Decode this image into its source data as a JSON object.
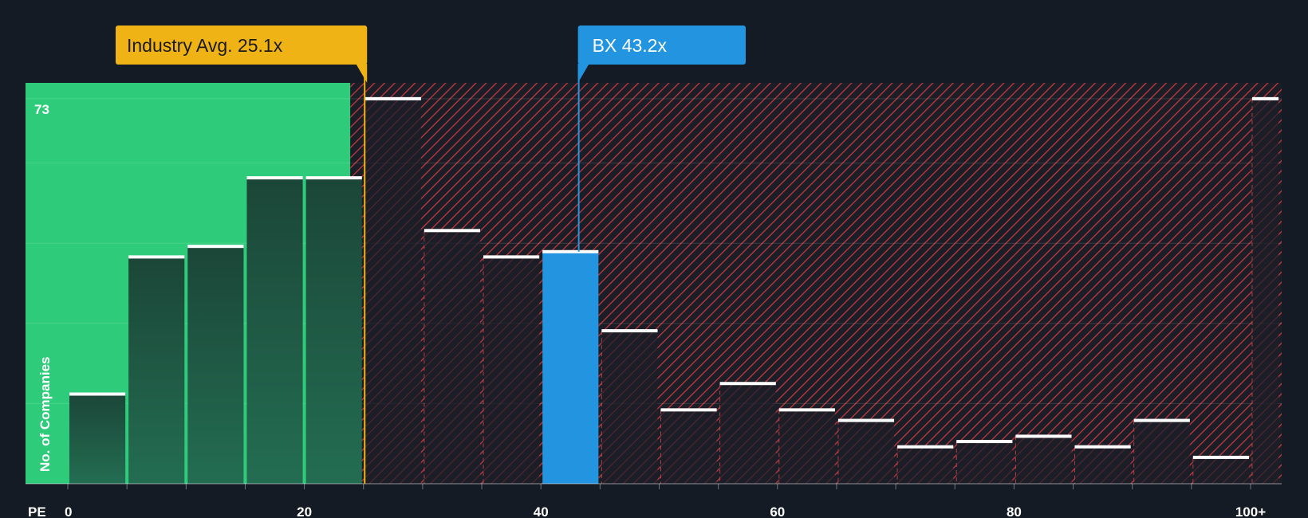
{
  "chart_data": {
    "type": "bar",
    "title": "",
    "xlabel": "PE",
    "ylabel": "No. of Companies",
    "y_max_label": "73",
    "ylim": [
      0,
      76
    ],
    "x_ticks": [
      {
        "value": 0,
        "label": "0"
      },
      {
        "value": 20,
        "label": "20"
      },
      {
        "value": 40,
        "label": "40"
      },
      {
        "value": 60,
        "label": "60"
      },
      {
        "value": 80,
        "label": "80"
      },
      {
        "value": 100,
        "label": "100+"
      }
    ],
    "bin_width": 5,
    "bins": [
      {
        "start": 0,
        "end": 5,
        "value": 17
      },
      {
        "start": 5,
        "end": 10,
        "value": 43
      },
      {
        "start": 10,
        "end": 15,
        "value": 45
      },
      {
        "start": 15,
        "end": 20,
        "value": 58
      },
      {
        "start": 20,
        "end": 25,
        "value": 58
      },
      {
        "start": 25,
        "end": 30,
        "value": 73
      },
      {
        "start": 30,
        "end": 35,
        "value": 48
      },
      {
        "start": 35,
        "end": 40,
        "value": 43
      },
      {
        "start": 40,
        "end": 45,
        "value": 44
      },
      {
        "start": 45,
        "end": 50,
        "value": 29
      },
      {
        "start": 50,
        "end": 55,
        "value": 14
      },
      {
        "start": 55,
        "end": 60,
        "value": 19
      },
      {
        "start": 60,
        "end": 65,
        "value": 14
      },
      {
        "start": 65,
        "end": 70,
        "value": 12
      },
      {
        "start": 70,
        "end": 75,
        "value": 7
      },
      {
        "start": 75,
        "end": 80,
        "value": 8
      },
      {
        "start": 80,
        "end": 85,
        "value": 9
      },
      {
        "start": 85,
        "end": 90,
        "value": 7
      },
      {
        "start": 90,
        "end": 95,
        "value": 12
      },
      {
        "start": 95,
        "end": 100,
        "value": 5
      },
      {
        "start": 100,
        "end": 102.5,
        "value": 73
      }
    ],
    "industry_avg": {
      "label": "Industry Avg. 25.1x",
      "value": 25.1,
      "color": "#f0b316"
    },
    "company": {
      "label": "BX 43.2x",
      "ticker": "BX",
      "value": 43.2,
      "color": "#2394e0"
    },
    "colors": {
      "background": "#151b24",
      "fair_zone": "#2ecc7a",
      "fair_bar": "#1e4a3a",
      "over_hatch": "#c0393f",
      "bar_cap": "#ffffff"
    }
  }
}
